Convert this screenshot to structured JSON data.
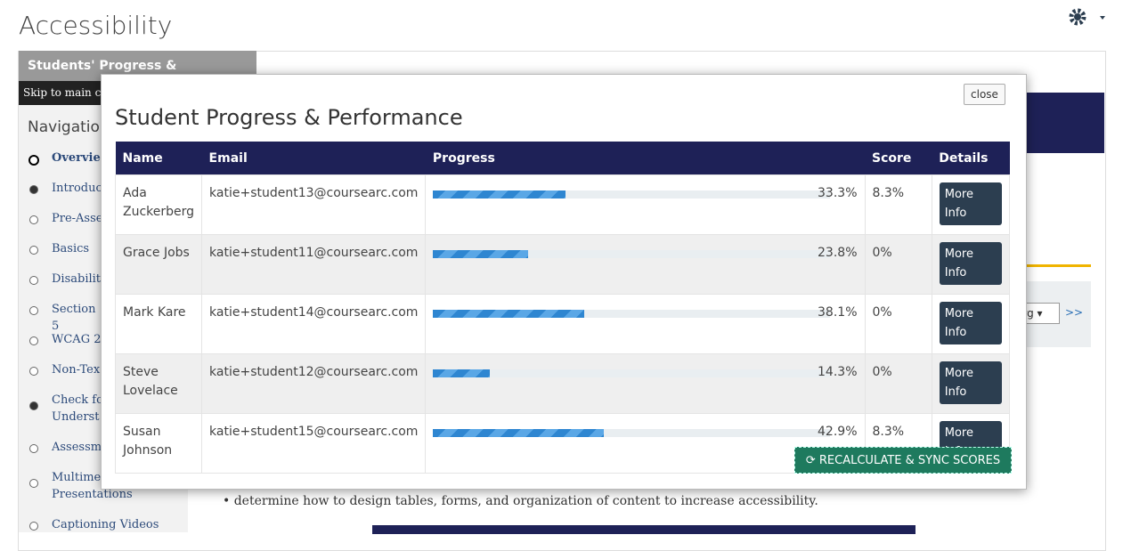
{
  "page_title": "Accessibility",
  "tab": "Students' Progress & Performance",
  "skip_link": "Skip to main co",
  "navigation": {
    "heading": "Navigatior",
    "items": [
      "Overvie",
      "Introduc",
      "Pre-Asse",
      "Basics",
      "Disabilit",
      "Section 5",
      "WCAG 2",
      "Non-Tex",
      "Check fo Underst",
      "Assessm",
      "Multime Presentations",
      "Captioning Videos"
    ]
  },
  "side_select": "erg",
  "side_next": ">>",
  "bullet": "determine how to design tables, forms, and organization of content to increase accessibility.",
  "modal": {
    "close": "close",
    "title": "Student Progress & Performance",
    "headers": [
      "Name",
      "Email",
      "Progress",
      "Score",
      "Details"
    ],
    "rows": [
      {
        "name": "Ada Zuckerberg",
        "email": "katie+student13@coursearc.com",
        "progress": 33.3,
        "progress_label": "33.3%",
        "score": "8.3%",
        "details": "More Info"
      },
      {
        "name": "Grace Jobs",
        "email": "katie+student11@coursearc.com",
        "progress": 23.8,
        "progress_label": "23.8%",
        "score": "0%",
        "details": "More Info"
      },
      {
        "name": "Mark Kare",
        "email": "katie+student14@coursearc.com",
        "progress": 38.1,
        "progress_label": "38.1%",
        "score": "0%",
        "details": "More Info"
      },
      {
        "name": "Steve Lovelace",
        "email": "katie+student12@coursearc.com",
        "progress": 14.3,
        "progress_label": "14.3%",
        "score": "0%",
        "details": "More Info"
      },
      {
        "name": "Susan Johnson",
        "email": "katie+student15@coursearc.com",
        "progress": 42.9,
        "progress_label": "42.9%",
        "score": "8.3%",
        "details": "More Info"
      }
    ],
    "button": "RECALCULATE & SYNC SCORES"
  }
}
